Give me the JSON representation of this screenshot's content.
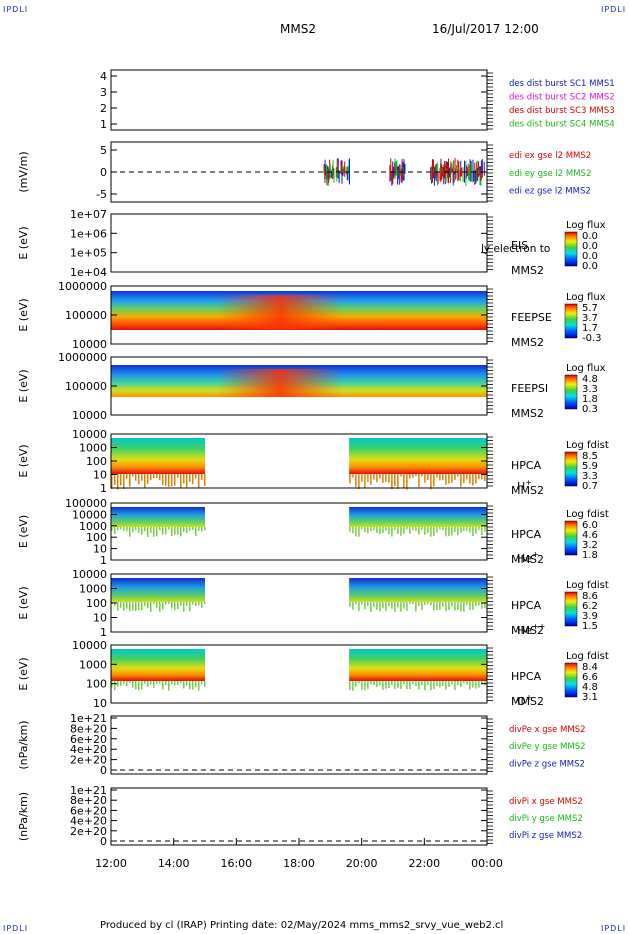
{
  "header": {
    "corner_tag": "IPDLI",
    "spacecraft": "MMS2",
    "datetime": "16/Jul/2017 12:00"
  },
  "footer": {
    "text": "Produced by cl (IRAP)   Printing date: 02/May/2024   mms_mms2_srvy_vue_web2.cl"
  },
  "time_axis": {
    "ticks": [
      "12:00",
      "14:00",
      "16:00",
      "18:00",
      "20:00",
      "22:00",
      "00:00"
    ],
    "range_hours": [
      0,
      12
    ]
  },
  "colors": {
    "blue": "#1020c8",
    "red": "#dd0000",
    "green": "#18b818",
    "magenta": "#e010e0",
    "dashed": "#000000"
  },
  "chart_data": [
    {
      "type": "line",
      "panel": "des-dist-burst",
      "ylabel": "",
      "yticks": [
        "1",
        "2",
        "3",
        "4"
      ],
      "ylim": [
        0.7,
        4.3
      ],
      "series": [
        {
          "name": "des dist burst SC1 MMS1",
          "color": "#1020c8",
          "values": []
        },
        {
          "name": "des dist burst SC2 MMS2",
          "color": "#e010e0",
          "values": []
        },
        {
          "name": "des dist burst SC3 MMS3",
          "color": "#dd0000",
          "values": []
        },
        {
          "name": "des dist burst SC4 MMS4",
          "color": "#18b818",
          "values": []
        }
      ]
    },
    {
      "type": "line",
      "panel": "edi-e-gse",
      "ylabel": "(mV/m)",
      "yticks": [
        "-5",
        "0",
        "5"
      ],
      "ylim": [
        -7,
        7
      ],
      "zero_line": true,
      "series": [
        {
          "name": "edi ex gse l2 MMS2",
          "color": "#dd0000"
        },
        {
          "name": "edi ey gse l2 MMS2",
          "color": "#18b818"
        },
        {
          "name": "edi ez gse l2 MMS2",
          "color": "#1020c8"
        }
      ],
      "activity_hours": [
        [
          6.8,
          7.6
        ],
        [
          8.9,
          9.4
        ],
        [
          10.2,
          11.9
        ]
      ]
    },
    {
      "type": "heatmap",
      "panel": "eis",
      "ylabel": "E (eV)",
      "yticks": [
        "1e+04",
        "1e+05",
        "1e+06",
        "1e+07"
      ],
      "side_label": [
        "EIS",
        "MMS2"
      ],
      "overlay_text": "ly electron to",
      "colorbar_title": "Log flux",
      "colorbar_ticks": [
        "0.0",
        "0.0",
        "0.0",
        "0.0"
      ]
    },
    {
      "type": "heatmap",
      "panel": "feeps-e",
      "ylabel": "E (eV)",
      "yticks": [
        "10000",
        "100000",
        "1000000"
      ],
      "side_label": [
        "FEEPSE",
        "MMS2"
      ],
      "colorbar_title": "Log flux",
      "colorbar_ticks": [
        "5.7",
        "3.7",
        "1.7",
        "-0.3"
      ],
      "coverage_hours": [
        [
          0,
          12
        ]
      ]
    },
    {
      "type": "heatmap",
      "panel": "feeps-i",
      "ylabel": "E (eV)",
      "yticks": [
        "10000",
        "100000",
        "1000000"
      ],
      "side_label": [
        "FEEPSI",
        "MMS2"
      ],
      "colorbar_title": "Log flux",
      "colorbar_ticks": [
        "4.8",
        "3.3",
        "1.8",
        "0.3"
      ],
      "coverage_hours": [
        [
          0,
          12
        ]
      ]
    },
    {
      "type": "heatmap",
      "panel": "hpca-h",
      "ylabel": "E (eV)",
      "yticks": [
        "1",
        "10",
        "100",
        "1000",
        "10000"
      ],
      "side_label": [
        "HPCA",
        "MMS2"
      ],
      "species": "H",
      "species_sup": "+",
      "colorbar_title": "Log fdist",
      "colorbar_ticks": [
        "8.5",
        "5.9",
        "3.3",
        "0.7"
      ],
      "coverage_hours": [
        [
          0,
          3
        ],
        [
          7.6,
          12
        ]
      ]
    },
    {
      "type": "heatmap",
      "panel": "hpca-he",
      "ylabel": "E (eV)",
      "yticks": [
        "1",
        "10",
        "100",
        "1000",
        "10000",
        "100000"
      ],
      "side_label": [
        "HPCA",
        "MMS2"
      ],
      "species": "He",
      "species_sup": "+",
      "colorbar_title": "Log fdist",
      "colorbar_ticks": [
        "6.0",
        "4.6",
        "3.2",
        "1.8"
      ],
      "coverage_hours": [
        [
          0,
          3
        ],
        [
          7.6,
          12
        ]
      ]
    },
    {
      "type": "heatmap",
      "panel": "hpca-he2",
      "ylabel": "E (eV)",
      "yticks": [
        "1",
        "10",
        "100",
        "1000",
        "10000"
      ],
      "side_label": [
        "HPCA",
        "MMS2"
      ],
      "species": "He",
      "species_sup": "++",
      "colorbar_title": "Log fdist",
      "colorbar_ticks": [
        "8.6",
        "6.2",
        "3.9",
        "1.5"
      ],
      "coverage_hours": [
        [
          0,
          3
        ],
        [
          7.6,
          12
        ]
      ]
    },
    {
      "type": "heatmap",
      "panel": "hpca-o",
      "ylabel": "E (eV)",
      "yticks": [
        "10",
        "100",
        "1000",
        "10000"
      ],
      "side_label": [
        "HPCA",
        "MMS2"
      ],
      "species": "O",
      "species_sup": "+",
      "colorbar_title": "Log fdist",
      "colorbar_ticks": [
        "8.4",
        "6.6",
        "4.8",
        "3.1"
      ],
      "coverage_hours": [
        [
          0,
          3
        ],
        [
          7.6,
          12
        ]
      ]
    },
    {
      "type": "line",
      "panel": "divpe",
      "ylabel": "(nPa/km)",
      "yticks": [
        "0",
        "2e+20",
        "4e+20",
        "6e+20",
        "8e+20",
        "1e+21"
      ],
      "ylim": [
        -5e+19,
        1.05e+21
      ],
      "zero_line": true,
      "series": [
        {
          "name": "divPe x gse MMS2",
          "color": "#dd0000",
          "values": []
        },
        {
          "name": "divPe y gse MMS2",
          "color": "#18b818",
          "values": []
        },
        {
          "name": "divPe z gse MMS2",
          "color": "#1020c8",
          "values": []
        }
      ]
    },
    {
      "type": "line",
      "panel": "divpi",
      "ylabel": "(nPa/km)",
      "yticks": [
        "0",
        "2e+20",
        "4e+20",
        "6e+20",
        "8e+20",
        "1e+21"
      ],
      "ylim": [
        -5e+19,
        1.05e+21
      ],
      "zero_line": true,
      "series": [
        {
          "name": "divPi x gse MMS2",
          "color": "#dd0000",
          "values": []
        },
        {
          "name": "divPi y gse MMS2",
          "color": "#18b818",
          "values": []
        },
        {
          "name": "divPi z gse MMS2",
          "color": "#1020c8",
          "values": []
        }
      ]
    }
  ]
}
